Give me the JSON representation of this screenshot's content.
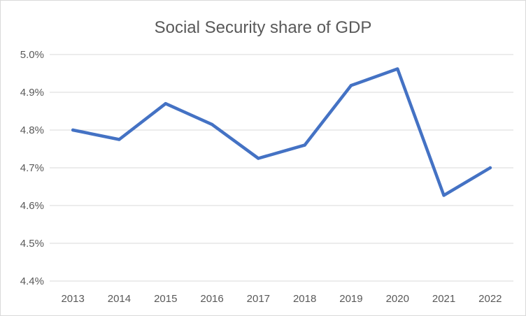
{
  "chart_data": {
    "type": "line",
    "title": "Social Security share of GDP",
    "xlabel": "",
    "ylabel": "",
    "categories": [
      "2013",
      "2014",
      "2015",
      "2016",
      "2017",
      "2018",
      "2019",
      "2020",
      "2021",
      "2022"
    ],
    "series": [
      {
        "values": [
          4.8,
          4.775,
          4.87,
          4.815,
          4.725,
          4.76,
          4.918,
          4.962,
          4.627,
          4.7
        ],
        "color": "#4472c4"
      }
    ],
    "ylim": [
      4.4,
      5.0
    ],
    "yticks": [
      4.4,
      4.5,
      4.6,
      4.7,
      4.8,
      4.9,
      5.0
    ],
    "ytick_labels": [
      "4.4%",
      "4.5%",
      "4.6%",
      "4.7%",
      "4.8%",
      "4.9%",
      "5.0%"
    ],
    "grid": true,
    "legend": "none"
  }
}
